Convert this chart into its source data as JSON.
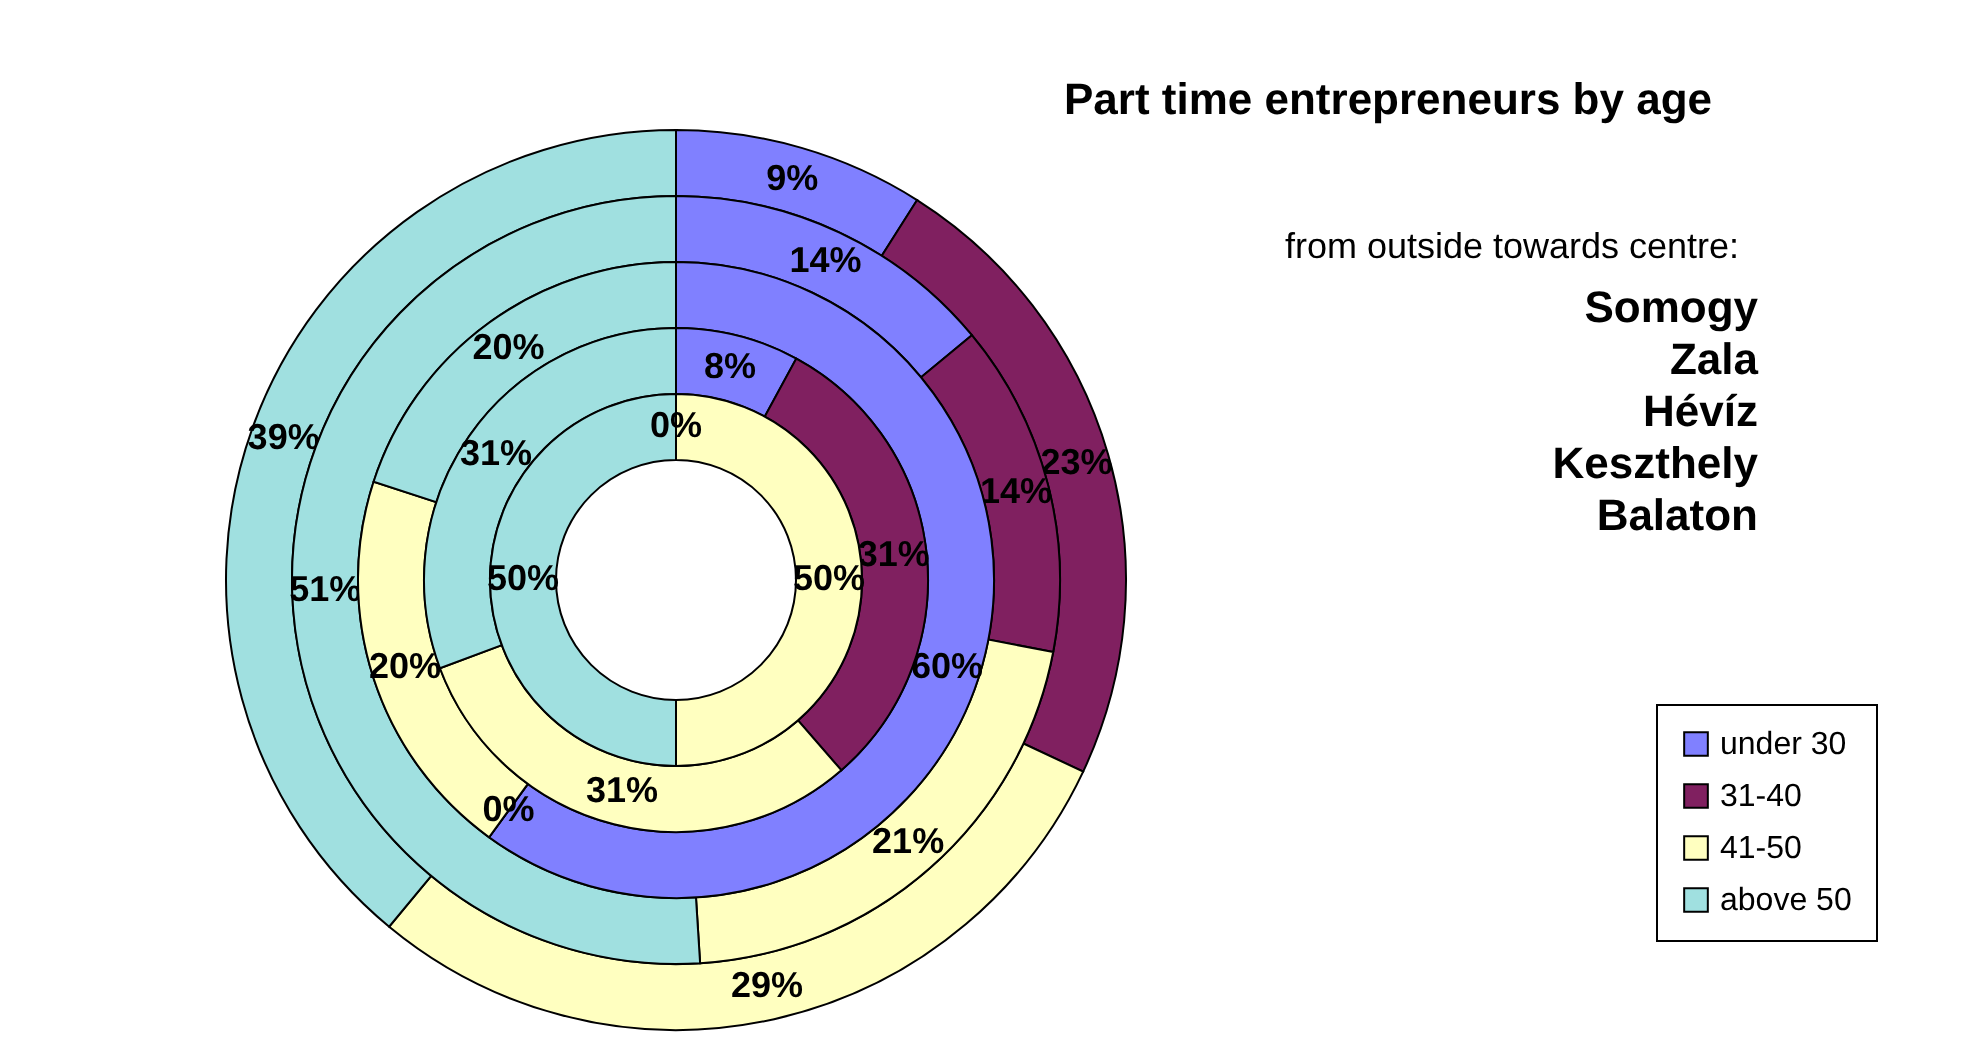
{
  "chart_data": {
    "type": "donut",
    "title": "Part time entrepreneurs by age",
    "annotations": [
      "from outside towards centre:",
      "Somogy",
      "Zala",
      "Hévíz",
      "Keszthely",
      "Balaton"
    ],
    "categories": [
      "under 30",
      "31-40",
      "41-50",
      "above 50"
    ],
    "colors": [
      "#8080ff",
      "#802060",
      "#ffffc0",
      "#a0e0e0"
    ],
    "legend": "bottom right",
    "series": [
      {
        "values": [
          9,
          23,
          29,
          39
        ],
        "value_labels": [
          "9%",
          "23%",
          "29%",
          "39%"
        ]
      },
      {
        "values": [
          14,
          14,
          21,
          51
        ],
        "value_labels": [
          "14%",
          "14%",
          "21%",
          "51%"
        ]
      },
      {
        "values": [
          60,
          0,
          20,
          20
        ],
        "value_labels": [
          "60%",
          "0%",
          "20%",
          "20%"
        ]
      },
      {
        "values": [
          8,
          31,
          31,
          31
        ],
        "value_labels": [
          "8%",
          "31%",
          "31%",
          "31%"
        ]
      },
      {
        "values": [
          0,
          0,
          50,
          50
        ],
        "value_labels": [
          "0%",
          null,
          "50%",
          "50%"
        ]
      }
    ]
  }
}
